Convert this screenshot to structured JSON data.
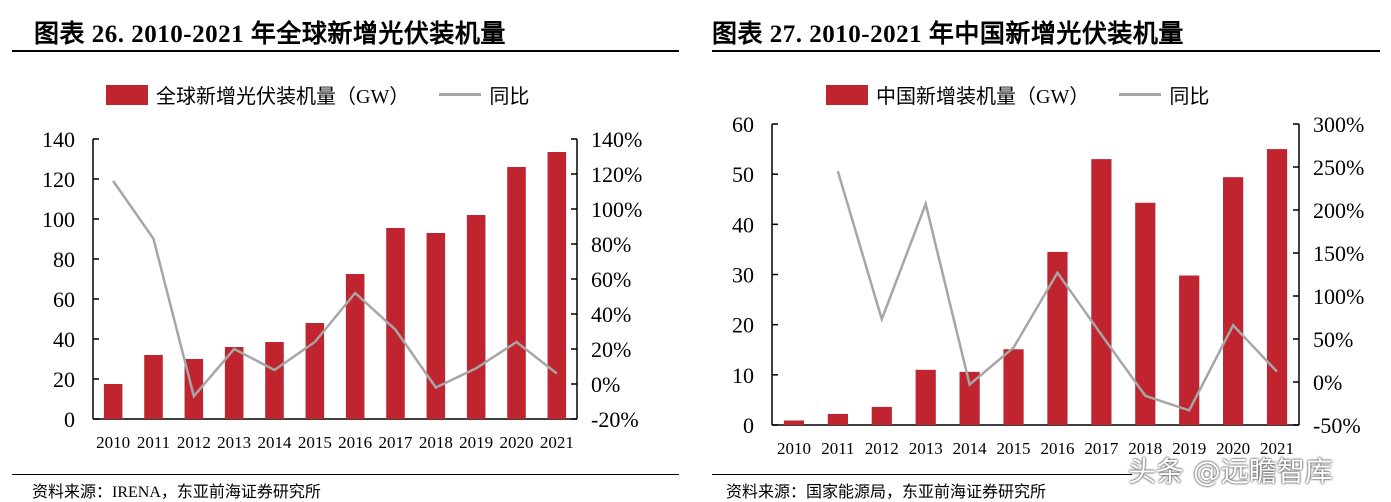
{
  "charts_text": [
    {
      "title": "图表 26. 2010-2021 年全球新增光伏装机量",
      "legend_bar": "全球新增光伏装机量（GW）",
      "legend_line": "同比",
      "source": "资料来源：IRENA，东亚前海证券研究所"
    },
    {
      "title": "图表 27. 2010-2021 年中国新增光伏装机量",
      "legend_bar": "中国新增装机量（GW）",
      "legend_line": "同比",
      "source": "资料来源：国家能源局，东亚前海证券研究所"
    }
  ],
  "watermark": "头条 @远瞻智库",
  "colors": {
    "bar": "#c0242f",
    "line": "#a6a6a6"
  },
  "chart_data": [
    {
      "type": "bar+line",
      "title": "图表 26. 2010-2021 年全球新增光伏装机量",
      "categories": [
        "2010",
        "2011",
        "2012",
        "2013",
        "2014",
        "2015",
        "2016",
        "2017",
        "2018",
        "2019",
        "2020",
        "2021"
      ],
      "series": [
        {
          "name": "全球新增光伏装机量（GW）",
          "type": "bar",
          "axis": "left",
          "values": [
            17.5,
            32,
            30,
            36,
            38.5,
            48,
            72.5,
            95.5,
            93,
            102,
            126,
            133.5
          ]
        },
        {
          "name": "同比",
          "type": "line",
          "axis": "right",
          "values": [
            116,
            83,
            -7,
            20,
            8,
            24,
            52,
            31,
            -2,
            9,
            24,
            6
          ]
        }
      ],
      "ylim": [
        0,
        140
      ],
      "yticks": [
        "0",
        "20",
        "40",
        "60",
        "80",
        "100",
        "120",
        "140"
      ],
      "y2lim": [
        -20,
        140
      ],
      "y2ticks": [
        "-20%",
        "0%",
        "20%",
        "40%",
        "60%",
        "80%",
        "100%",
        "120%",
        "140%"
      ],
      "legend": "top",
      "grid": false
    },
    {
      "type": "bar+line",
      "title": "图表 27. 2010-2021 年中国新增光伏装机量",
      "categories": [
        "2010",
        "2011",
        "2012",
        "2013",
        "2014",
        "2015",
        "2016",
        "2017",
        "2018",
        "2019",
        "2020",
        "2021"
      ],
      "series": [
        {
          "name": "中国新增装机量（GW）",
          "type": "bar",
          "axis": "left",
          "values": [
            0.9,
            2.2,
            3.6,
            11,
            10.6,
            15.1,
            34.5,
            53,
            44.3,
            29.8,
            49.4,
            55
          ]
        },
        {
          "name": "同比",
          "type": "line",
          "axis": "right",
          "values": [
            null,
            245,
            73,
            207,
            -3,
            40,
            127,
            55,
            -16,
            -33,
            66,
            12
          ]
        }
      ],
      "ylim": [
        0,
        60
      ],
      "yticks": [
        "0",
        "10",
        "20",
        "30",
        "40",
        "50",
        "60"
      ],
      "y2lim": [
        -50,
        300
      ],
      "y2ticks": [
        "-50%",
        "0%",
        "50%",
        "100%",
        "150%",
        "200%",
        "250%",
        "300%"
      ],
      "legend": "top",
      "grid": false
    }
  ]
}
